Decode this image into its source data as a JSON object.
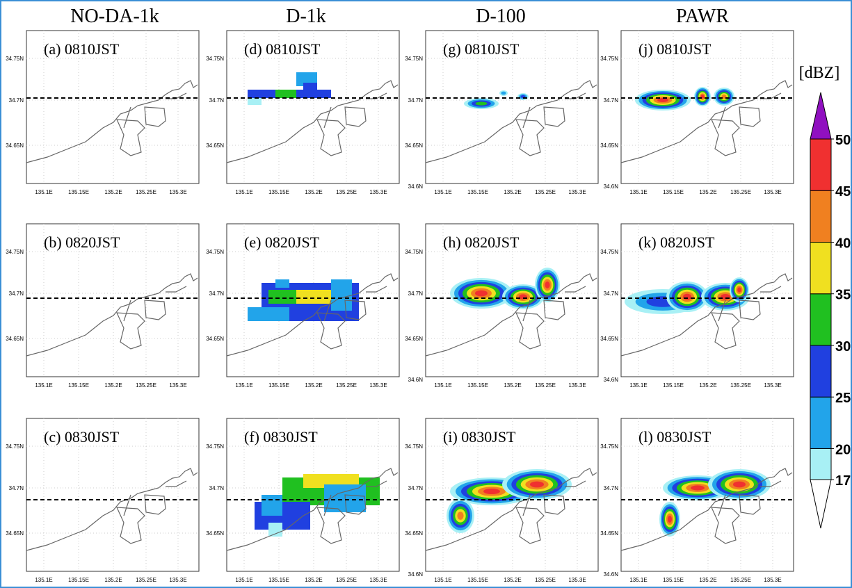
{
  "columns": [
    "NO-DA-1k",
    "D-1k",
    "D-100",
    "PAWR"
  ],
  "panels": [
    [
      "(a) 0810JST",
      "(d) 0810JST",
      "(g) 0810JST",
      "(j) 0810JST"
    ],
    [
      "(b) 0820JST",
      "(e) 0820JST",
      "(h) 0820JST",
      "(k) 0820JST"
    ],
    [
      "(c) 0830JST",
      "(f) 0830JST",
      "(i) 0830JST",
      "(l) 0830JST"
    ]
  ],
  "xticks": [
    "135.1E",
    "135.15E",
    "135.2E",
    "135.25E",
    "135.3E"
  ],
  "yticks": [
    "34.75N",
    "34.7N",
    "34.65N",
    "34.6N"
  ],
  "colorbar": {
    "unit": "[dBZ]",
    "ticks": [
      17,
      20,
      25,
      30,
      35,
      40,
      45,
      50
    ]
  }
}
